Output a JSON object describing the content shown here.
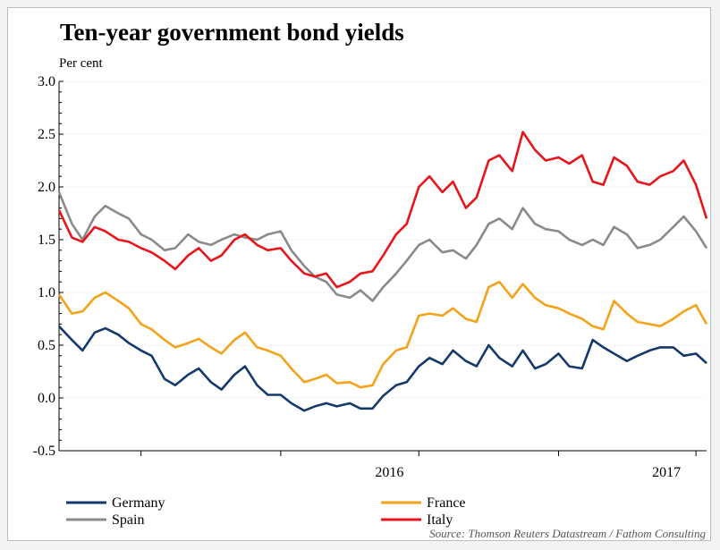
{
  "chart_data": {
    "type": "line",
    "title": "Ten-year government bond yields",
    "ylabel": "Per cent",
    "xlabel": "",
    "ylim": [
      -0.5,
      3.0
    ],
    "yticks": [
      "3.0",
      "2.5",
      "2.0",
      "1.5",
      "1.0",
      "0.5",
      "0.0",
      "-0.5"
    ],
    "xlim": [
      "2015-03-15",
      "2017-07-15"
    ],
    "xtick_labels": [
      "2016",
      "2017"
    ],
    "grid": "horizontal dotted",
    "legend_position": "bottom",
    "source": "Source: Thomson Reuters Datastream / Fathom Consulting",
    "series": [
      {
        "name": "Germany",
        "color": "#14396b",
        "points": [
          [
            "2015-03-15",
            0.68
          ],
          [
            "2015-04-01",
            0.55
          ],
          [
            "2015-04-15",
            0.45
          ],
          [
            "2015-05-01",
            0.62
          ],
          [
            "2015-05-15",
            0.66
          ],
          [
            "2015-06-01",
            0.6
          ],
          [
            "2015-06-15",
            0.52
          ],
          [
            "2015-07-01",
            0.45
          ],
          [
            "2015-07-15",
            0.4
          ],
          [
            "2015-08-01",
            0.18
          ],
          [
            "2015-08-15",
            0.12
          ],
          [
            "2015-09-01",
            0.22
          ],
          [
            "2015-09-15",
            0.28
          ],
          [
            "2015-10-01",
            0.15
          ],
          [
            "2015-10-15",
            0.08
          ],
          [
            "2015-11-01",
            0.22
          ],
          [
            "2015-11-15",
            0.3
          ],
          [
            "2015-12-01",
            0.12
          ],
          [
            "2015-12-15",
            0.03
          ],
          [
            "2016-01-01",
            0.03
          ],
          [
            "2016-01-15",
            -0.05
          ],
          [
            "2016-02-01",
            -0.12
          ],
          [
            "2016-02-15",
            -0.08
          ],
          [
            "2016-03-01",
            -0.05
          ],
          [
            "2016-03-15",
            -0.08
          ],
          [
            "2016-04-01",
            -0.05
          ],
          [
            "2016-04-15",
            -0.1
          ],
          [
            "2016-05-01",
            -0.1
          ],
          [
            "2016-05-15",
            0.02
          ],
          [
            "2016-06-01",
            0.12
          ],
          [
            "2016-06-15",
            0.15
          ],
          [
            "2016-07-01",
            0.3
          ],
          [
            "2016-07-15",
            0.38
          ],
          [
            "2016-08-01",
            0.32
          ],
          [
            "2016-08-15",
            0.45
          ],
          [
            "2016-09-01",
            0.35
          ],
          [
            "2016-09-15",
            0.3
          ],
          [
            "2016-10-01",
            0.5
          ],
          [
            "2016-10-15",
            0.38
          ],
          [
            "2016-11-01",
            0.3
          ],
          [
            "2016-11-15",
            0.45
          ],
          [
            "2016-12-01",
            0.28
          ],
          [
            "2016-12-15",
            0.32
          ],
          [
            "2017-01-01",
            0.42
          ],
          [
            "2017-01-15",
            0.3
          ],
          [
            "2017-02-01",
            0.28
          ],
          [
            "2017-02-15",
            0.55
          ],
          [
            "2017-03-01",
            0.48
          ],
          [
            "2017-03-15",
            0.42
          ],
          [
            "2017-04-01",
            0.35
          ],
          [
            "2017-04-15",
            0.4
          ],
          [
            "2017-05-01",
            0.45
          ],
          [
            "2017-05-15",
            0.48
          ],
          [
            "2017-06-01",
            0.48
          ],
          [
            "2017-06-15",
            0.4
          ],
          [
            "2017-07-01",
            0.42
          ],
          [
            "2017-07-15",
            0.33
          ]
        ]
      },
      {
        "name": "France",
        "color": "#f5a21b",
        "points": [
          [
            "2015-03-15",
            0.98
          ],
          [
            "2015-04-01",
            0.8
          ],
          [
            "2015-04-15",
            0.82
          ],
          [
            "2015-05-01",
            0.95
          ],
          [
            "2015-05-15",
            1.0
          ],
          [
            "2015-06-01",
            0.92
          ],
          [
            "2015-06-15",
            0.85
          ],
          [
            "2015-07-01",
            0.7
          ],
          [
            "2015-07-15",
            0.65
          ],
          [
            "2015-08-01",
            0.55
          ],
          [
            "2015-08-15",
            0.48
          ],
          [
            "2015-09-01",
            0.52
          ],
          [
            "2015-09-15",
            0.56
          ],
          [
            "2015-10-01",
            0.48
          ],
          [
            "2015-10-15",
            0.42
          ],
          [
            "2015-11-01",
            0.55
          ],
          [
            "2015-11-15",
            0.62
          ],
          [
            "2015-12-01",
            0.48
          ],
          [
            "2015-12-15",
            0.45
          ],
          [
            "2016-01-01",
            0.4
          ],
          [
            "2016-01-15",
            0.28
          ],
          [
            "2016-02-01",
            0.15
          ],
          [
            "2016-02-15",
            0.18
          ],
          [
            "2016-03-01",
            0.22
          ],
          [
            "2016-03-15",
            0.14
          ],
          [
            "2016-04-01",
            0.15
          ],
          [
            "2016-04-15",
            0.1
          ],
          [
            "2016-05-01",
            0.12
          ],
          [
            "2016-05-15",
            0.32
          ],
          [
            "2016-06-01",
            0.45
          ],
          [
            "2016-06-15",
            0.48
          ],
          [
            "2016-07-01",
            0.78
          ],
          [
            "2016-07-15",
            0.8
          ],
          [
            "2016-08-01",
            0.78
          ],
          [
            "2016-08-15",
            0.85
          ],
          [
            "2016-09-01",
            0.75
          ],
          [
            "2016-09-15",
            0.72
          ],
          [
            "2016-10-01",
            1.05
          ],
          [
            "2016-10-15",
            1.1
          ],
          [
            "2016-11-01",
            0.95
          ],
          [
            "2016-11-15",
            1.08
          ],
          [
            "2016-12-01",
            0.95
          ],
          [
            "2016-12-15",
            0.88
          ],
          [
            "2017-01-01",
            0.85
          ],
          [
            "2017-01-15",
            0.8
          ],
          [
            "2017-02-01",
            0.75
          ],
          [
            "2017-02-15",
            0.68
          ],
          [
            "2017-03-01",
            0.65
          ],
          [
            "2017-03-15",
            0.92
          ],
          [
            "2017-04-01",
            0.8
          ],
          [
            "2017-04-15",
            0.72
          ],
          [
            "2017-05-01",
            0.7
          ],
          [
            "2017-05-15",
            0.68
          ],
          [
            "2017-06-01",
            0.75
          ],
          [
            "2017-06-15",
            0.82
          ],
          [
            "2017-07-01",
            0.88
          ],
          [
            "2017-07-15",
            0.7
          ]
        ]
      },
      {
        "name": "Spain",
        "color": "#8a8a8a",
        "points": [
          [
            "2015-03-15",
            1.95
          ],
          [
            "2015-04-01",
            1.65
          ],
          [
            "2015-04-15",
            1.5
          ],
          [
            "2015-05-01",
            1.72
          ],
          [
            "2015-05-15",
            1.82
          ],
          [
            "2015-06-01",
            1.75
          ],
          [
            "2015-06-15",
            1.7
          ],
          [
            "2015-07-01",
            1.55
          ],
          [
            "2015-07-15",
            1.5
          ],
          [
            "2015-08-01",
            1.4
          ],
          [
            "2015-08-15",
            1.42
          ],
          [
            "2015-09-01",
            1.55
          ],
          [
            "2015-09-15",
            1.48
          ],
          [
            "2015-10-01",
            1.45
          ],
          [
            "2015-10-15",
            1.5
          ],
          [
            "2015-11-01",
            1.55
          ],
          [
            "2015-11-15",
            1.52
          ],
          [
            "2015-12-01",
            1.5
          ],
          [
            "2015-12-15",
            1.55
          ],
          [
            "2016-01-01",
            1.58
          ],
          [
            "2016-01-15",
            1.4
          ],
          [
            "2016-02-01",
            1.25
          ],
          [
            "2016-02-15",
            1.15
          ],
          [
            "2016-03-01",
            1.1
          ],
          [
            "2016-03-15",
            0.98
          ],
          [
            "2016-04-01",
            0.95
          ],
          [
            "2016-04-15",
            1.02
          ],
          [
            "2016-05-01",
            0.92
          ],
          [
            "2016-05-15",
            1.05
          ],
          [
            "2016-06-01",
            1.18
          ],
          [
            "2016-06-15",
            1.3
          ],
          [
            "2016-07-01",
            1.45
          ],
          [
            "2016-07-15",
            1.5
          ],
          [
            "2016-08-01",
            1.38
          ],
          [
            "2016-08-15",
            1.4
          ],
          [
            "2016-09-01",
            1.32
          ],
          [
            "2016-09-15",
            1.45
          ],
          [
            "2016-10-01",
            1.65
          ],
          [
            "2016-10-15",
            1.7
          ],
          [
            "2016-11-01",
            1.6
          ],
          [
            "2016-11-15",
            1.8
          ],
          [
            "2016-12-01",
            1.65
          ],
          [
            "2016-12-15",
            1.6
          ],
          [
            "2017-01-01",
            1.58
          ],
          [
            "2017-01-15",
            1.5
          ],
          [
            "2017-02-01",
            1.45
          ],
          [
            "2017-02-15",
            1.5
          ],
          [
            "2017-03-01",
            1.45
          ],
          [
            "2017-03-15",
            1.62
          ],
          [
            "2017-04-01",
            1.55
          ],
          [
            "2017-04-15",
            1.42
          ],
          [
            "2017-05-01",
            1.45
          ],
          [
            "2017-05-15",
            1.5
          ],
          [
            "2017-06-01",
            1.62
          ],
          [
            "2017-06-15",
            1.72
          ],
          [
            "2017-07-01",
            1.58
          ],
          [
            "2017-07-15",
            1.42
          ]
        ]
      },
      {
        "name": "Italy",
        "color": "#e8141b",
        "points": [
          [
            "2015-03-15",
            1.78
          ],
          [
            "2015-04-01",
            1.52
          ],
          [
            "2015-04-15",
            1.48
          ],
          [
            "2015-05-01",
            1.62
          ],
          [
            "2015-05-15",
            1.58
          ],
          [
            "2015-06-01",
            1.5
          ],
          [
            "2015-06-15",
            1.48
          ],
          [
            "2015-07-01",
            1.42
          ],
          [
            "2015-07-15",
            1.38
          ],
          [
            "2015-08-01",
            1.3
          ],
          [
            "2015-08-15",
            1.22
          ],
          [
            "2015-09-01",
            1.35
          ],
          [
            "2015-09-15",
            1.42
          ],
          [
            "2015-10-01",
            1.3
          ],
          [
            "2015-10-15",
            1.35
          ],
          [
            "2015-11-01",
            1.5
          ],
          [
            "2015-11-15",
            1.55
          ],
          [
            "2015-12-01",
            1.45
          ],
          [
            "2015-12-15",
            1.4
          ],
          [
            "2016-01-01",
            1.42
          ],
          [
            "2016-01-15",
            1.3
          ],
          [
            "2016-02-01",
            1.18
          ],
          [
            "2016-02-15",
            1.15
          ],
          [
            "2016-03-01",
            1.18
          ],
          [
            "2016-03-15",
            1.05
          ],
          [
            "2016-04-01",
            1.1
          ],
          [
            "2016-04-15",
            1.18
          ],
          [
            "2016-05-01",
            1.2
          ],
          [
            "2016-05-15",
            1.35
          ],
          [
            "2016-06-01",
            1.55
          ],
          [
            "2016-06-15",
            1.65
          ],
          [
            "2016-07-01",
            2.0
          ],
          [
            "2016-07-15",
            2.1
          ],
          [
            "2016-08-01",
            1.95
          ],
          [
            "2016-08-15",
            2.05
          ],
          [
            "2016-09-01",
            1.8
          ],
          [
            "2016-09-15",
            1.9
          ],
          [
            "2016-10-01",
            2.25
          ],
          [
            "2016-10-15",
            2.3
          ],
          [
            "2016-11-01",
            2.15
          ],
          [
            "2016-11-15",
            2.52
          ],
          [
            "2016-12-01",
            2.35
          ],
          [
            "2016-12-15",
            2.25
          ],
          [
            "2017-01-01",
            2.28
          ],
          [
            "2017-01-15",
            2.22
          ],
          [
            "2017-02-01",
            2.3
          ],
          [
            "2017-02-15",
            2.05
          ],
          [
            "2017-03-01",
            2.02
          ],
          [
            "2017-03-15",
            2.28
          ],
          [
            "2017-04-01",
            2.2
          ],
          [
            "2017-04-15",
            2.05
          ],
          [
            "2017-05-01",
            2.02
          ],
          [
            "2017-05-15",
            2.1
          ],
          [
            "2017-06-01",
            2.15
          ],
          [
            "2017-06-15",
            2.25
          ],
          [
            "2017-07-01",
            2.02
          ],
          [
            "2017-07-15",
            1.7
          ]
        ]
      }
    ]
  }
}
